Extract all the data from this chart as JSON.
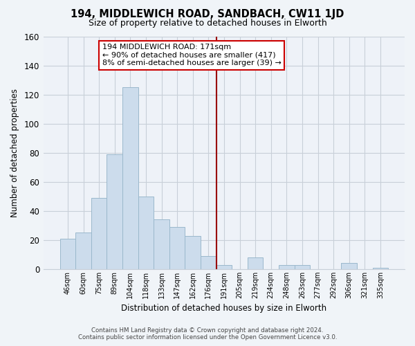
{
  "title": "194, MIDDLEWICH ROAD, SANDBACH, CW11 1JD",
  "subtitle": "Size of property relative to detached houses in Elworth",
  "xlabel": "Distribution of detached houses by size in Elworth",
  "ylabel": "Number of detached properties",
  "bin_labels": [
    "46sqm",
    "60sqm",
    "75sqm",
    "89sqm",
    "104sqm",
    "118sqm",
    "133sqm",
    "147sqm",
    "162sqm",
    "176sqm",
    "191sqm",
    "205sqm",
    "219sqm",
    "234sqm",
    "248sqm",
    "263sqm",
    "277sqm",
    "292sqm",
    "306sqm",
    "321sqm",
    "335sqm"
  ],
  "bar_heights": [
    21,
    25,
    49,
    79,
    125,
    50,
    34,
    29,
    23,
    9,
    3,
    0,
    8,
    0,
    3,
    3,
    0,
    0,
    4,
    0,
    1
  ],
  "bar_color": "#ccdcec",
  "bar_edge_color": "#9ab8cc",
  "vline_x": 9.5,
  "vline_color": "#990000",
  "annotation_line1": "194 MIDDLEWICH ROAD: 171sqm",
  "annotation_line2": "← 90% of detached houses are smaller (417)",
  "annotation_line3": "8% of semi-detached houses are larger (39) →",
  "annotation_box_color": "#ffffff",
  "annotation_box_edge_color": "#cc0000",
  "ylim": [
    0,
    160
  ],
  "yticks": [
    0,
    20,
    40,
    60,
    80,
    100,
    120,
    140,
    160
  ],
  "footer_line1": "Contains HM Land Registry data © Crown copyright and database right 2024.",
  "footer_line2": "Contains public sector information licensed under the Open Government Licence v3.0.",
  "bg_color": "#f0f4f8",
  "plot_bg_color": "#eef2f8",
  "grid_color": "#c8cfd8"
}
